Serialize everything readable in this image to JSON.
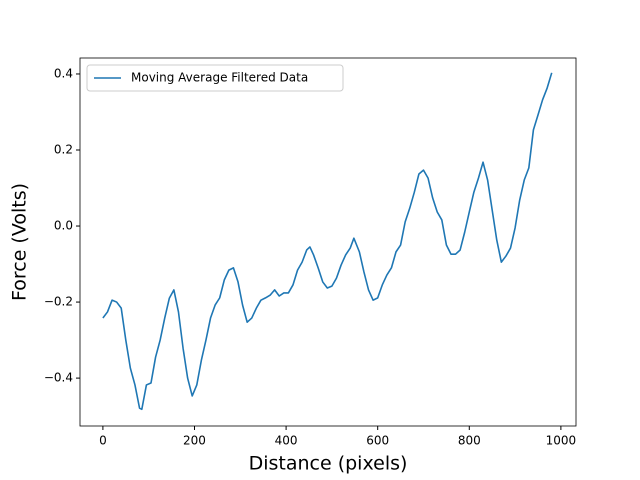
{
  "chart_data": {
    "type": "line",
    "x_label": "Distance (pixels)",
    "y_label": "Force (Volts)",
    "legend_loc": "upper left",
    "xlim": [
      -50,
      1033
    ],
    "ylim": [
      -0.526,
      0.442
    ],
    "xticks": [
      0,
      200,
      400,
      600,
      800,
      1000
    ],
    "yticks": [
      {
        "value": -0.4,
        "label": "−0.4"
      },
      {
        "value": -0.2,
        "label": "−0.2"
      },
      {
        "value": 0,
        "label": "0.0"
      },
      0.2,
      0.4
    ],
    "x": [
      0,
      10,
      20,
      30,
      40,
      50,
      60,
      70,
      80,
      85,
      95,
      105,
      115,
      125,
      135,
      145,
      155,
      165,
      175,
      185,
      195,
      205,
      215,
      225,
      235,
      245,
      255,
      265,
      275,
      285,
      295,
      305,
      315,
      325,
      335,
      345,
      355,
      365,
      375,
      385,
      395,
      405,
      415,
      425,
      435,
      445,
      452,
      460,
      470,
      480,
      490,
      500,
      510,
      520,
      530,
      540,
      548,
      560,
      570,
      580,
      590,
      600,
      610,
      620,
      630,
      640,
      650,
      660,
      670,
      680,
      690,
      700,
      710,
      720,
      730,
      740,
      750,
      760,
      770,
      780,
      790,
      800,
      810,
      820,
      830,
      840,
      850,
      860,
      870,
      880,
      890,
      900,
      910,
      920,
      930,
      940,
      950,
      960,
      970,
      980
    ],
    "series": [
      {
        "name": "Moving Average Filtered Data",
        "color": "#1f77b4",
        "values": [
          -0.242,
          -0.226,
          -0.195,
          -0.2,
          -0.216,
          -0.3,
          -0.374,
          -0.418,
          -0.479,
          -0.482,
          -0.418,
          -0.413,
          -0.345,
          -0.3,
          -0.242,
          -0.19,
          -0.168,
          -0.226,
          -0.321,
          -0.4,
          -0.447,
          -0.418,
          -0.353,
          -0.3,
          -0.242,
          -0.208,
          -0.189,
          -0.142,
          -0.116,
          -0.11,
          -0.147,
          -0.208,
          -0.253,
          -0.242,
          -0.216,
          -0.195,
          -0.189,
          -0.182,
          -0.168,
          -0.184,
          -0.176,
          -0.176,
          -0.155,
          -0.116,
          -0.095,
          -0.063,
          -0.055,
          -0.076,
          -0.11,
          -0.147,
          -0.163,
          -0.158,
          -0.137,
          -0.103,
          -0.076,
          -0.058,
          -0.032,
          -0.068,
          -0.121,
          -0.168,
          -0.195,
          -0.189,
          -0.155,
          -0.129,
          -0.11,
          -0.068,
          -0.05,
          0.011,
          0.047,
          0.089,
          0.137,
          0.147,
          0.126,
          0.074,
          0.037,
          0.016,
          -0.05,
          -0.074,
          -0.074,
          -0.063,
          -0.016,
          0.037,
          0.089,
          0.126,
          0.168,
          0.121,
          0.042,
          -0.037,
          -0.095,
          -0.079,
          -0.058,
          -0.005,
          0.068,
          0.121,
          0.153,
          0.253,
          0.292,
          0.332,
          0.363,
          0.403
        ]
      }
    ]
  }
}
